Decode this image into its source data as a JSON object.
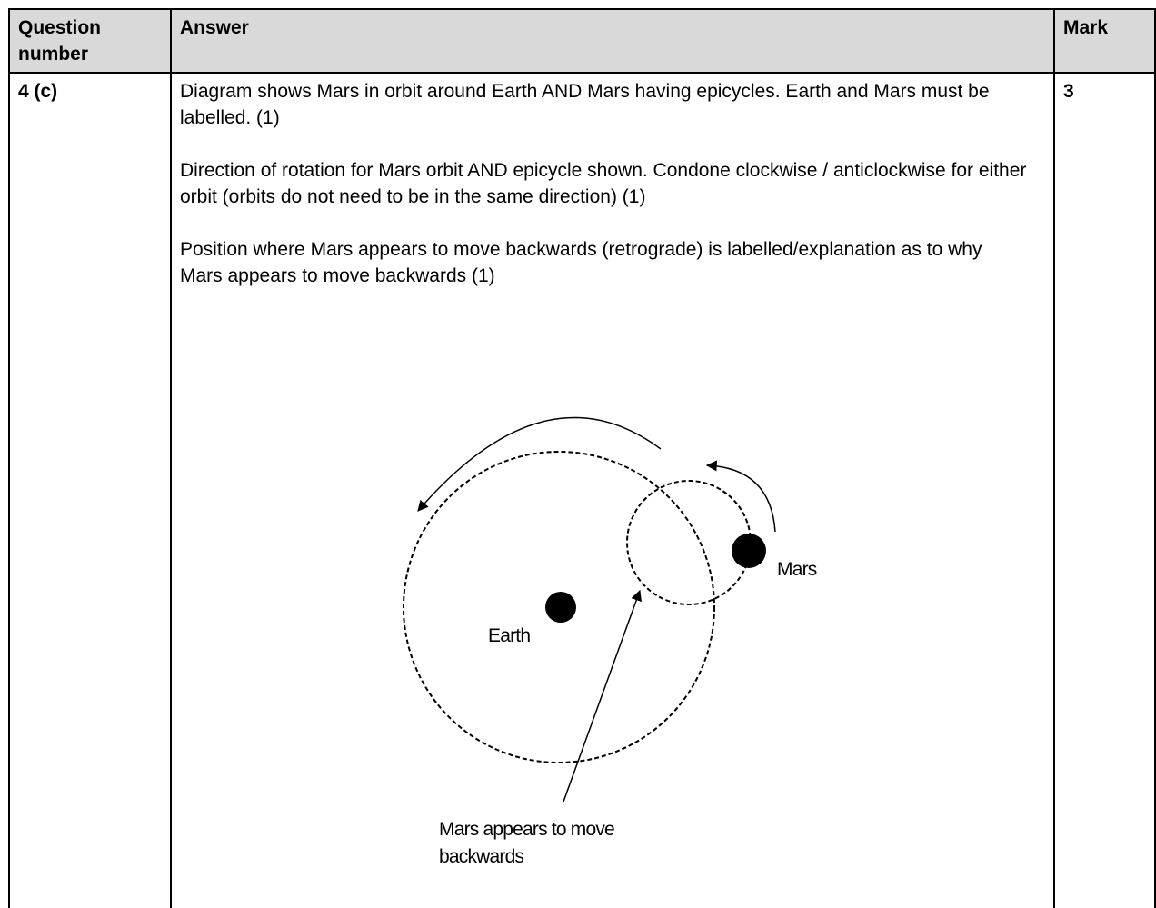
{
  "table": {
    "headers": [
      "Question number",
      "Answer",
      "Mark"
    ],
    "rows": [
      {
        "question": "4 (c)",
        "answer": [
          "Diagram shows Mars in orbit around Earth AND Mars having epicycles. Earth and Mars must be labelled. (1)",
          "Direction of rotation for Mars orbit AND epicycle shown. Condone clockwise / anticlockwise for either orbit (orbits do not need to be in the same direction) (1)",
          "Position where Mars appears to move backwards (retrograde) is labelled/explanation as to why Mars appears to move backwards (1)"
        ],
        "mark": "3"
      }
    ]
  },
  "diagram": {
    "earth": "Earth",
    "mars": "Mars",
    "retrograde": "Mars appears to move backwards"
  }
}
